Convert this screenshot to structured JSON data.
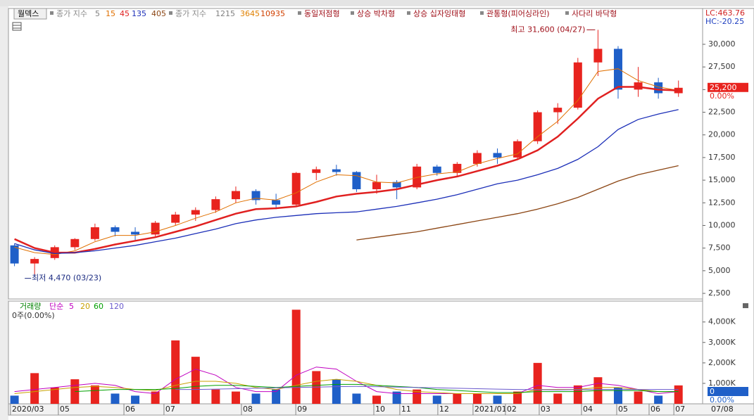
{
  "chart_data": {
    "type": "candlestick",
    "stock": "월덱스",
    "xlim": [
      -0.3,
      34.2
    ],
    "xticks": [
      {
        "value": -0.2,
        "label": "2020/03"
      },
      {
        "value": 2.18,
        "label": "05"
      },
      {
        "value": 5.44,
        "label": "06"
      },
      {
        "value": 7.43,
        "label": "07"
      },
      {
        "value": 11.28,
        "label": "08"
      },
      {
        "value": 13.98,
        "label": "09"
      },
      {
        "value": 17.86,
        "label": "10"
      },
      {
        "value": 19.15,
        "label": "11"
      },
      {
        "value": 21.04,
        "label": "12"
      },
      {
        "value": 22.79,
        "label": "2021/01"
      },
      {
        "value": 24.4,
        "label": "02"
      },
      {
        "value": 26.08,
        "label": "03"
      },
      {
        "value": 28.18,
        "label": "04"
      },
      {
        "value": 29.93,
        "label": "05"
      },
      {
        "value": 31.54,
        "label": "06"
      },
      {
        "value": 32.77,
        "label": "07"
      }
    ],
    "x_end_label": "07/08",
    "ylim": [
      1880,
      33960
    ],
    "yticks": [
      {
        "value": 30000,
        "label": "30,000"
      },
      {
        "value": 27500,
        "label": "27,500"
      },
      {
        "value": 25000,
        "label": "25,000"
      },
      {
        "value": 22500,
        "label": "22,500"
      },
      {
        "value": 20000,
        "label": "20,000"
      },
      {
        "value": 17500,
        "label": "17,500"
      },
      {
        "value": 15000,
        "label": "15,000"
      },
      {
        "value": 12500,
        "label": "12,500"
      },
      {
        "value": 10000,
        "label": "10,000"
      },
      {
        "value": 7500,
        "label": "7,500"
      },
      {
        "value": 5000,
        "label": "5,000"
      },
      {
        "value": 2500,
        "label": "2,500"
      }
    ],
    "up_color": "#e8231e",
    "down_color": "#1f5fc8",
    "open": [
      7800,
      5800,
      6400,
      7600,
      8500,
      9800,
      9300,
      9000,
      10300,
      11200,
      11700,
      12900,
      13800,
      12800,
      12300,
      15800,
      16200,
      15900,
      14000,
      14800,
      14200,
      16500,
      15800,
      16800,
      18000,
      17500,
      19300,
      22500,
      23000,
      28000,
      29500,
      25000,
      25800,
      24600
    ],
    "high": [
      8000,
      6500,
      7800,
      8600,
      10200,
      10000,
      9800,
      10500,
      11500,
      12000,
      13200,
      14300,
      14000,
      13500,
      15900,
      16500,
      16700,
      16000,
      15600,
      15000,
      16800,
      16700,
      17000,
      18300,
      18500,
      19500,
      22700,
      23500,
      28500,
      31600,
      29800,
      27500,
      26300,
      26000
    ],
    "low": [
      5500,
      4470,
      6200,
      7300,
      8300,
      8800,
      8400,
      8800,
      10000,
      10500,
      11400,
      12500,
      12300,
      11800,
      12200,
      15000,
      15500,
      13700,
      13500,
      12900,
      14000,
      15500,
      15400,
      16500,
      16800,
      17300,
      19000,
      21200,
      22800,
      26500,
      24000,
      24200,
      24000,
      24200
    ],
    "close": [
      5800,
      6300,
      7600,
      8500,
      9800,
      9300,
      9000,
      10300,
      11200,
      11700,
      12900,
      13800,
      12800,
      12300,
      15800,
      16200,
      15900,
      14000,
      14800,
      14200,
      16500,
      15800,
      16800,
      18000,
      17500,
      19300,
      22500,
      23000,
      28000,
      29500,
      25000,
      25800,
      24600,
      25200
    ],
    "ma_groups": [
      {
        "label": "종가 지수",
        "lines": [
          {
            "name": "5",
            "color": "#808080"
          },
          {
            "name": "15",
            "color": "#e07000",
            "width": 1,
            "values": [
              7600,
              7000,
              6800,
              7200,
              8200,
              8900,
              8900,
              9300,
              10000,
              10800,
              11500,
              12500,
              13000,
              12800,
              13600,
              14800,
              15600,
              15500,
              14800,
              14700,
              15300,
              15700,
              15900,
              16800,
              17400,
              17900,
              19800,
              21500,
              23800,
              27000,
              27300,
              26000,
              25300,
              24900
            ]
          },
          {
            "name": "45",
            "color": "#e02020",
            "width": 2.5,
            "values": [
              8500,
              7500,
              7000,
              7000,
              7400,
              7900,
              8300,
              8700,
              9300,
              9900,
              10600,
              11300,
              11800,
              11900,
              12100,
              12600,
              13200,
              13500,
              13700,
              14000,
              14500,
              15000,
              15400,
              16000,
              16600,
              17300,
              18300,
              19800,
              21800,
              24000,
              25300,
              25300,
              25000,
              24900
            ]
          },
          {
            "name": "135",
            "color": "#1c2fb8",
            "width": 1.3,
            "values": [
              8000,
              7300,
              6900,
              7000,
              7200,
              7500,
              7800,
              8200,
              8600,
              9100,
              9600,
              10200,
              10600,
              10900,
              11100,
              11300,
              11400,
              11500,
              11800,
              12100,
              12500,
              12900,
              13400,
              14000,
              14600,
              15000,
              15600,
              16300,
              17300,
              18700,
              20600,
              21700,
              22300,
              22800
            ]
          },
          {
            "name": "405",
            "color": "#8b4513",
            "width": 1.3,
            "values": [
              null,
              null,
              null,
              null,
              null,
              null,
              null,
              null,
              null,
              null,
              null,
              null,
              null,
              null,
              null,
              null,
              null,
              8400,
              8700,
              9000,
              9300,
              9700,
              10100,
              10500,
              10900,
              11300,
              11800,
              12400,
              13100,
              14000,
              14900,
              15600,
              16100,
              16600
            ]
          }
        ]
      },
      {
        "label": "종가 지수",
        "lines": [
          {
            "name": "1215",
            "color": "#808080"
          },
          {
            "name": "3645",
            "color": "#e08000"
          },
          {
            "name": "10935",
            "color": "#d04000"
          }
        ]
      }
    ],
    "patterns": [
      "동일저점형",
      "상승 박차형",
      "상승 십자잉태형",
      "관통형(피어싱라인)",
      "사다리 바닥형"
    ],
    "high_note": "최고 31,600 (04/27)",
    "low_note": "최저 4,470 (03/23)",
    "lc": "LC:463.76",
    "hc": "HC:-20.25",
    "last_price": {
      "value": 25200,
      "label": "25,200"
    },
    "last_change": "0.00%",
    "volume": {
      "label": "거래량",
      "status": "0주(0.00%)",
      "ylim": [
        0,
        4780
      ],
      "yticks": [
        {
          "value": 4000,
          "label": "4,000K"
        },
        {
          "value": 3000,
          "label": "3,000K"
        },
        {
          "value": 2000,
          "label": "2,000K"
        },
        {
          "value": 1000,
          "label": "1,000K"
        }
      ],
      "values": [
        400,
        1500,
        800,
        1200,
        900,
        500,
        400,
        600,
        3100,
        2300,
        700,
        600,
        500,
        700,
        4600,
        1600,
        1200,
        500,
        400,
        600,
        700,
        400,
        500,
        500,
        400,
        600,
        2000,
        500,
        900,
        1300,
        800,
        600,
        400,
        900
      ],
      "ma_label": "단순",
      "lines": [
        {
          "name": "5",
          "color": "#c000c0",
          "values": [
            600,
            700,
            800,
            900,
            1000,
            900,
            600,
            500,
            1200,
            1700,
            1400,
            800,
            600,
            600,
            1400,
            1800,
            1700,
            1100,
            600,
            500,
            500,
            500,
            500,
            500,
            500,
            500,
            900,
            800,
            800,
            1000,
            900,
            700,
            500,
            600
          ]
        },
        {
          "name": "20",
          "color": "#c8a000",
          "values": [
            500,
            600,
            700,
            800,
            850,
            800,
            700,
            650,
            900,
            1100,
            1100,
            1000,
            800,
            700,
            900,
            1100,
            1200,
            1100,
            900,
            700,
            600,
            550,
            500,
            500,
            500,
            500,
            700,
            700,
            700,
            800,
            800,
            700,
            600,
            600
          ]
        },
        {
          "name": "60",
          "color": "#00a000",
          "values": [
            null,
            null,
            null,
            600,
            650,
            700,
            700,
            700,
            750,
            850,
            900,
            900,
            850,
            800,
            850,
            900,
            950,
            950,
            900,
            850,
            800,
            700,
            650,
            600,
            550,
            550,
            600,
            600,
            600,
            650,
            650,
            650,
            600,
            600
          ]
        },
        {
          "name": "120",
          "color": "#6a5acd",
          "values": [
            null,
            null,
            null,
            null,
            null,
            null,
            null,
            null,
            700,
            700,
            720,
            740,
            760,
            780,
            800,
            820,
            840,
            850,
            840,
            820,
            800,
            780,
            760,
            740,
            720,
            700,
            690,
            680,
            690,
            700,
            700,
            700,
            700,
            700
          ]
        }
      ],
      "last": {
        "value": 0,
        "label": "0"
      },
      "change": "0.00%"
    }
  }
}
